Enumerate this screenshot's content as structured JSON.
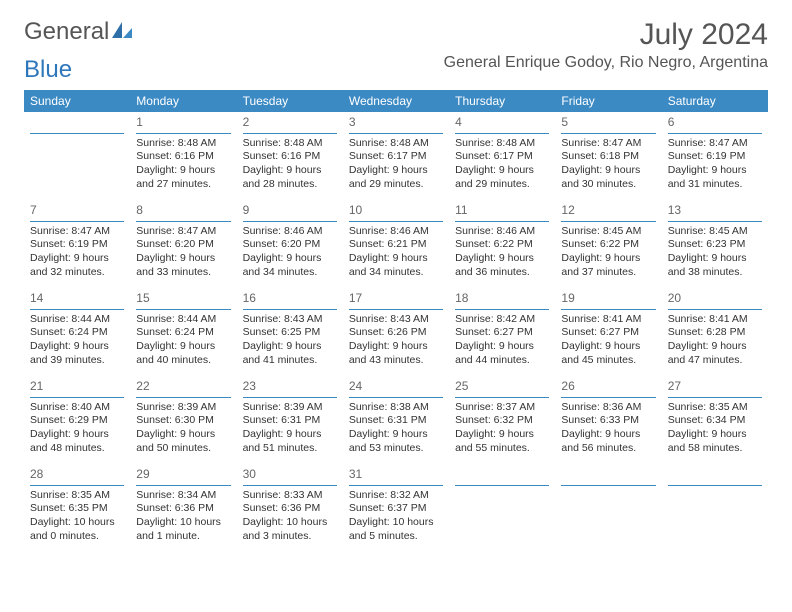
{
  "brand": {
    "word1": "General",
    "word2": "Blue"
  },
  "title": "July 2024",
  "location": "General Enrique Godoy, Rio Negro, Argentina",
  "colors": {
    "header_bg": "#3b8ac4",
    "header_text": "#ffffff",
    "rule": "#3b8ac4",
    "body_text": "#333333",
    "muted_text": "#555555",
    "page_bg": "#ffffff"
  },
  "days_of_week": [
    "Sunday",
    "Monday",
    "Tuesday",
    "Wednesday",
    "Thursday",
    "Friday",
    "Saturday"
  ],
  "weeks": [
    [
      {
        "num": "",
        "lines": []
      },
      {
        "num": "1",
        "lines": [
          "Sunrise: 8:48 AM",
          "Sunset: 6:16 PM",
          "Daylight: 9 hours and 27 minutes."
        ]
      },
      {
        "num": "2",
        "lines": [
          "Sunrise: 8:48 AM",
          "Sunset: 6:16 PM",
          "Daylight: 9 hours and 28 minutes."
        ]
      },
      {
        "num": "3",
        "lines": [
          "Sunrise: 8:48 AM",
          "Sunset: 6:17 PM",
          "Daylight: 9 hours and 29 minutes."
        ]
      },
      {
        "num": "4",
        "lines": [
          "Sunrise: 8:48 AM",
          "Sunset: 6:17 PM",
          "Daylight: 9 hours and 29 minutes."
        ]
      },
      {
        "num": "5",
        "lines": [
          "Sunrise: 8:47 AM",
          "Sunset: 6:18 PM",
          "Daylight: 9 hours and 30 minutes."
        ]
      },
      {
        "num": "6",
        "lines": [
          "Sunrise: 8:47 AM",
          "Sunset: 6:19 PM",
          "Daylight: 9 hours and 31 minutes."
        ]
      }
    ],
    [
      {
        "num": "7",
        "lines": [
          "Sunrise: 8:47 AM",
          "Sunset: 6:19 PM",
          "Daylight: 9 hours and 32 minutes."
        ]
      },
      {
        "num": "8",
        "lines": [
          "Sunrise: 8:47 AM",
          "Sunset: 6:20 PM",
          "Daylight: 9 hours and 33 minutes."
        ]
      },
      {
        "num": "9",
        "lines": [
          "Sunrise: 8:46 AM",
          "Sunset: 6:20 PM",
          "Daylight: 9 hours and 34 minutes."
        ]
      },
      {
        "num": "10",
        "lines": [
          "Sunrise: 8:46 AM",
          "Sunset: 6:21 PM",
          "Daylight: 9 hours and 34 minutes."
        ]
      },
      {
        "num": "11",
        "lines": [
          "Sunrise: 8:46 AM",
          "Sunset: 6:22 PM",
          "Daylight: 9 hours and 36 minutes."
        ]
      },
      {
        "num": "12",
        "lines": [
          "Sunrise: 8:45 AM",
          "Sunset: 6:22 PM",
          "Daylight: 9 hours and 37 minutes."
        ]
      },
      {
        "num": "13",
        "lines": [
          "Sunrise: 8:45 AM",
          "Sunset: 6:23 PM",
          "Daylight: 9 hours and 38 minutes."
        ]
      }
    ],
    [
      {
        "num": "14",
        "lines": [
          "Sunrise: 8:44 AM",
          "Sunset: 6:24 PM",
          "Daylight: 9 hours and 39 minutes."
        ]
      },
      {
        "num": "15",
        "lines": [
          "Sunrise: 8:44 AM",
          "Sunset: 6:24 PM",
          "Daylight: 9 hours and 40 minutes."
        ]
      },
      {
        "num": "16",
        "lines": [
          "Sunrise: 8:43 AM",
          "Sunset: 6:25 PM",
          "Daylight: 9 hours and 41 minutes."
        ]
      },
      {
        "num": "17",
        "lines": [
          "Sunrise: 8:43 AM",
          "Sunset: 6:26 PM",
          "Daylight: 9 hours and 43 minutes."
        ]
      },
      {
        "num": "18",
        "lines": [
          "Sunrise: 8:42 AM",
          "Sunset: 6:27 PM",
          "Daylight: 9 hours and 44 minutes."
        ]
      },
      {
        "num": "19",
        "lines": [
          "Sunrise: 8:41 AM",
          "Sunset: 6:27 PM",
          "Daylight: 9 hours and 45 minutes."
        ]
      },
      {
        "num": "20",
        "lines": [
          "Sunrise: 8:41 AM",
          "Sunset: 6:28 PM",
          "Daylight: 9 hours and 47 minutes."
        ]
      }
    ],
    [
      {
        "num": "21",
        "lines": [
          "Sunrise: 8:40 AM",
          "Sunset: 6:29 PM",
          "Daylight: 9 hours and 48 minutes."
        ]
      },
      {
        "num": "22",
        "lines": [
          "Sunrise: 8:39 AM",
          "Sunset: 6:30 PM",
          "Daylight: 9 hours and 50 minutes."
        ]
      },
      {
        "num": "23",
        "lines": [
          "Sunrise: 8:39 AM",
          "Sunset: 6:31 PM",
          "Daylight: 9 hours and 51 minutes."
        ]
      },
      {
        "num": "24",
        "lines": [
          "Sunrise: 8:38 AM",
          "Sunset: 6:31 PM",
          "Daylight: 9 hours and 53 minutes."
        ]
      },
      {
        "num": "25",
        "lines": [
          "Sunrise: 8:37 AM",
          "Sunset: 6:32 PM",
          "Daylight: 9 hours and 55 minutes."
        ]
      },
      {
        "num": "26",
        "lines": [
          "Sunrise: 8:36 AM",
          "Sunset: 6:33 PM",
          "Daylight: 9 hours and 56 minutes."
        ]
      },
      {
        "num": "27",
        "lines": [
          "Sunrise: 8:35 AM",
          "Sunset: 6:34 PM",
          "Daylight: 9 hours and 58 minutes."
        ]
      }
    ],
    [
      {
        "num": "28",
        "lines": [
          "Sunrise: 8:35 AM",
          "Sunset: 6:35 PM",
          "Daylight: 10 hours and 0 minutes."
        ]
      },
      {
        "num": "29",
        "lines": [
          "Sunrise: 8:34 AM",
          "Sunset: 6:36 PM",
          "Daylight: 10 hours and 1 minute."
        ]
      },
      {
        "num": "30",
        "lines": [
          "Sunrise: 8:33 AM",
          "Sunset: 6:36 PM",
          "Daylight: 10 hours and 3 minutes."
        ]
      },
      {
        "num": "31",
        "lines": [
          "Sunrise: 8:32 AM",
          "Sunset: 6:37 PM",
          "Daylight: 10 hours and 5 minutes."
        ]
      },
      {
        "num": "",
        "lines": []
      },
      {
        "num": "",
        "lines": []
      },
      {
        "num": "",
        "lines": []
      }
    ]
  ]
}
